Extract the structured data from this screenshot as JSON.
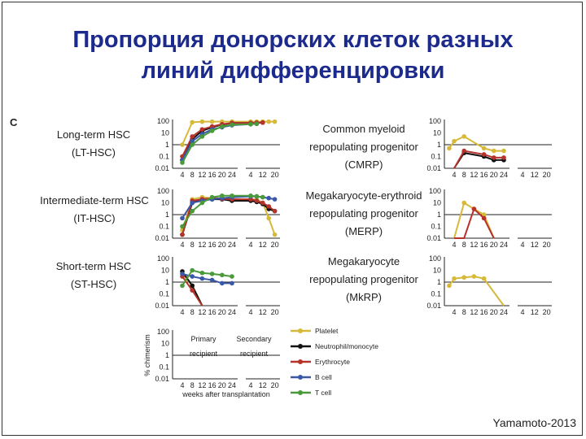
{
  "slide": {
    "title_line1": "Пропорция донорских клеток разных",
    "title_line2": "линий дифференцировки",
    "panel_letter": "C",
    "credit": "Yamamoto-2013"
  },
  "colors": {
    "title": "#1b2a8c",
    "Platelet": "#d7b93a",
    "Neutrophil/monocyte": "#111111",
    "Erythrocyte": "#b5332b",
    "B cell": "#3b58a8",
    "T cell": "#4a9a3b"
  },
  "chart_data": [
    {
      "type": "line",
      "label_lines": [
        "Long-term HSC",
        "(LT-HSC)"
      ],
      "y_scale": "log",
      "ylim": [
        0.01,
        100
      ],
      "y_ticks": [
        "100",
        "10",
        "1",
        "0.1",
        "0.01"
      ],
      "x_ticks_primary": [
        "4",
        "8",
        "12",
        "16",
        "20",
        "24"
      ],
      "x_ticks_secondary": [
        "4",
        "12",
        "20"
      ],
      "series": [
        {
          "name": "Platelet",
          "x": [
            4,
            8,
            12,
            16,
            20,
            24,
            "S4",
            "S8",
            "S12",
            "S16",
            "S20"
          ],
          "y": [
            1,
            80,
            90,
            90,
            90,
            90,
            90,
            90,
            90,
            90,
            90
          ]
        },
        {
          "name": "Neutrophil/monocyte",
          "x": [
            4,
            8,
            12,
            16,
            20,
            24,
            "S4",
            "S8",
            "S12"
          ],
          "y": [
            0.05,
            3,
            15,
            30,
            50,
            70,
            70,
            70,
            75
          ]
        },
        {
          "name": "Erythrocyte",
          "x": [
            4,
            8,
            12,
            16,
            20,
            24,
            "S4",
            "S8",
            "S12"
          ],
          "y": [
            0.1,
            5,
            20,
            35,
            55,
            70,
            70,
            75,
            75
          ]
        },
        {
          "name": "B cell",
          "x": [
            4,
            8,
            12,
            16,
            20,
            24,
            "S4",
            "S8"
          ],
          "y": [
            0.05,
            2,
            8,
            20,
            30,
            45,
            55,
            60
          ]
        },
        {
          "name": "T cell",
          "x": [
            4,
            8,
            12,
            16,
            20,
            24,
            "S4",
            "S8"
          ],
          "y": [
            0.03,
            1,
            5,
            15,
            35,
            50,
            55,
            60
          ]
        }
      ]
    },
    {
      "type": "line",
      "label_lines": [
        "Intermediate-term HSC",
        "(IT-HSC)"
      ],
      "y_scale": "log",
      "ylim": [
        0.01,
        100
      ],
      "y_ticks": [
        "100",
        "10",
        "1",
        "0.1",
        "0.01"
      ],
      "x_ticks_primary": [
        "4",
        "8",
        "12",
        "16",
        "20",
        "24"
      ],
      "x_ticks_secondary": [
        "4",
        "12",
        "20"
      ],
      "series": [
        {
          "name": "Platelet",
          "x": [
            4,
            8,
            12,
            16,
            20,
            24,
            "S4",
            "S8",
            "S12",
            "S16",
            "S20"
          ],
          "y": [
            0.05,
            20,
            30,
            25,
            25,
            20,
            20,
            20,
            10,
            0.5,
            0.02
          ]
        },
        {
          "name": "Neutrophil/monocyte",
          "x": [
            4,
            8,
            12,
            16,
            20,
            24,
            "S4",
            "S8",
            "S12",
            "S16",
            "S20"
          ],
          "y": [
            0.02,
            10,
            20,
            20,
            20,
            15,
            15,
            12,
            8,
            3,
            2
          ]
        },
        {
          "name": "Erythrocyte",
          "x": [
            4,
            8,
            12,
            16,
            20,
            24,
            "S4",
            "S8",
            "S12",
            "S16",
            "S20"
          ],
          "y": [
            0.02,
            15,
            20,
            25,
            22,
            20,
            20,
            15,
            10,
            5,
            2
          ]
        },
        {
          "name": "B cell",
          "x": [
            4,
            8,
            12,
            16,
            20,
            24,
            "S4",
            "S8",
            "S12",
            "S16",
            "S20"
          ],
          "y": [
            0.5,
            10,
            15,
            20,
            25,
            30,
            35,
            35,
            30,
            25,
            20
          ]
        },
        {
          "name": "T cell",
          "x": [
            4,
            8,
            12,
            16,
            20,
            24,
            "S4",
            "S8",
            "S12"
          ],
          "y": [
            0.1,
            2,
            10,
            30,
            40,
            40,
            40,
            35,
            30
          ]
        }
      ]
    },
    {
      "type": "line",
      "label_lines": [
        "Short-term HSC",
        "(ST-HSC)"
      ],
      "y_scale": "log",
      "ylim": [
        0.01,
        100
      ],
      "y_ticks": [
        "100",
        "10",
        "1",
        "0.1",
        "0.01"
      ],
      "x_ticks_primary": [
        "4",
        "8",
        "12",
        "16",
        "20",
        "24"
      ],
      "x_ticks_secondary": [
        "4",
        "12",
        "20"
      ],
      "series": [
        {
          "name": "Platelet",
          "x": [
            4,
            8,
            12
          ],
          "y": [
            5,
            0.5,
            0.01
          ]
        },
        {
          "name": "Neutrophil/monocyte",
          "x": [
            4,
            8,
            12
          ],
          "y": [
            8,
            0.5,
            0.01
          ]
        },
        {
          "name": "Erythrocyte",
          "x": [
            4,
            8,
            12
          ],
          "y": [
            3,
            0.2,
            0.01
          ]
        },
        {
          "name": "B cell",
          "x": [
            4,
            8,
            12,
            16,
            20,
            24
          ],
          "y": [
            5,
            3,
            2,
            1.5,
            0.8,
            0.8
          ]
        },
        {
          "name": "T cell",
          "x": [
            4,
            8,
            12,
            16,
            20,
            24
          ],
          "y": [
            0.5,
            10,
            6,
            5,
            4,
            3
          ]
        }
      ]
    },
    {
      "type": "line",
      "label_lines": [
        "Common myeloid",
        "repopulating progenitor",
        "(CMRP)"
      ],
      "y_scale": "log",
      "ylim": [
        0.01,
        100
      ],
      "y_ticks": [
        "100",
        "10",
        "1",
        "0.1",
        "0.01"
      ],
      "x_ticks_primary": [
        "4",
        "8",
        "12",
        "16",
        "20",
        "24"
      ],
      "x_ticks_secondary": [
        "4",
        "12",
        "20"
      ],
      "series": [
        {
          "name": "Platelet",
          "x": [
            2,
            4,
            8,
            16,
            20,
            24
          ],
          "y": [
            0.5,
            2,
            5,
            0.5,
            0.3,
            0.3
          ]
        },
        {
          "name": "Neutrophil/monocyte",
          "x": [
            4,
            8,
            16,
            20,
            24
          ],
          "y": [
            0.01,
            0.2,
            0.1,
            0.05,
            0.05
          ]
        },
        {
          "name": "Erythrocyte",
          "x": [
            4,
            8,
            16,
            20,
            24
          ],
          "y": [
            0.01,
            0.3,
            0.15,
            0.08,
            0.08
          ]
        }
      ]
    },
    {
      "type": "line",
      "label_lines": [
        "Megakaryocyte-erythroid",
        "repopulating progenitor",
        "(MERP)"
      ],
      "y_scale": "log",
      "ylim": [
        0.01,
        100
      ],
      "y_ticks": [
        "100",
        "10",
        "1",
        "0.1",
        "0.01"
      ],
      "x_ticks_primary": [
        "4",
        "8",
        "12",
        "16",
        "20",
        "24"
      ],
      "x_ticks_secondary": [
        "4",
        "12",
        "20"
      ],
      "series": [
        {
          "name": "Platelet",
          "x": [
            4,
            8,
            12,
            16,
            20
          ],
          "y": [
            0.01,
            10,
            3,
            1,
            0.01
          ]
        },
        {
          "name": "Erythrocyte",
          "x": [
            4,
            8,
            12,
            16,
            20
          ],
          "y": [
            0.01,
            0.01,
            3,
            0.5,
            0.01
          ]
        }
      ]
    },
    {
      "type": "line",
      "label_lines": [
        "Megakaryocyte",
        "repopulating progenitor",
        "(MkRP)"
      ],
      "y_scale": "log",
      "ylim": [
        0.01,
        100
      ],
      "y_ticks": [
        "100",
        "10",
        "1",
        "0.1",
        "0.01"
      ],
      "x_ticks_primary": [
        "4",
        "8",
        "12",
        "16",
        "20",
        "24"
      ],
      "x_ticks_secondary": [
        "4",
        "12",
        "20"
      ],
      "series": [
        {
          "name": "Platelet",
          "x": [
            2,
            4,
            8,
            12,
            16,
            24
          ],
          "y": [
            0.5,
            2,
            2.5,
            3,
            2,
            0.01
          ]
        }
      ]
    },
    {
      "type": "line",
      "role": "legend-key",
      "ylabel": "% chimerism",
      "xlabel": "weeks after transplantation",
      "annotations": [
        "Primary",
        "recipient",
        "Secondary",
        "recipient"
      ],
      "y_scale": "log",
      "ylim": [
        0.01,
        100
      ],
      "y_ticks": [
        "100",
        "10",
        "1",
        "0.1",
        "0.01"
      ],
      "x_ticks_primary": [
        "4",
        "8",
        "12",
        "16",
        "20",
        "24"
      ],
      "x_ticks_secondary": [
        "4",
        "12",
        "20"
      ],
      "legend": [
        "Platelet",
        "Neutrophil/monocyte",
        "Erythrocyte",
        "B cell",
        "T cell"
      ],
      "series": []
    }
  ]
}
